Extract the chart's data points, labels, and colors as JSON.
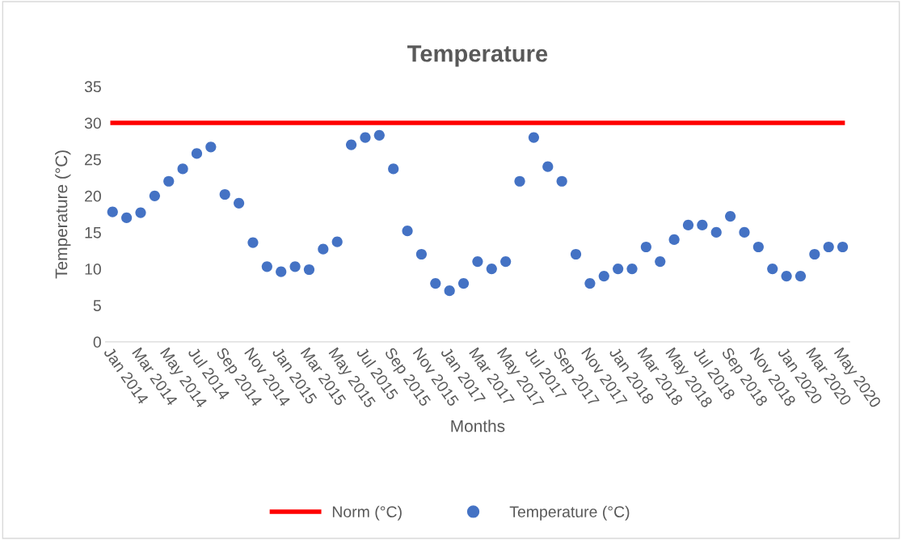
{
  "chart_data": {
    "type": "scatter",
    "title": "Temperature",
    "xlabel": "Months",
    "ylabel": "Temperature (°C)",
    "categories": [
      "Jan 2014",
      null,
      "Mar 2014",
      null,
      "May 2014",
      null,
      "Jul 2014",
      null,
      "Sep 2014",
      null,
      "Nov 2014",
      null,
      "Jan 2015",
      null,
      "Mar 2015",
      null,
      "May 2015",
      null,
      "Jul 2015",
      null,
      "Sep 2015",
      null,
      "Nov 2015",
      null,
      "Jan 2017",
      null,
      "Mar 2017",
      null,
      "May 2017",
      null,
      "Jul 2017",
      null,
      "Sep 2017",
      null,
      "Nov 2017",
      null,
      "Jan 2018",
      null,
      "Mar 2018",
      null,
      "May 2018",
      null,
      "Jul 2018",
      null,
      "Sep 2018",
      null,
      "Nov 2018",
      null,
      "Jan 2020",
      null,
      "Mar 2020",
      null,
      "May 2020"
    ],
    "series": [
      {
        "name": "Norm (°C)",
        "type": "line",
        "color": "#ff0000",
        "marker": "none",
        "line_style": "solid",
        "values": [
          30,
          30,
          30,
          30,
          30,
          30,
          30,
          30,
          30,
          30,
          30,
          30,
          30,
          30,
          30,
          30,
          30,
          30,
          30,
          30,
          30,
          30,
          30,
          30,
          30,
          30,
          30,
          30,
          30,
          30,
          30,
          30,
          30,
          30,
          30,
          30,
          30,
          30,
          30,
          30,
          30,
          30,
          30,
          30,
          30,
          30,
          30,
          30,
          30,
          30,
          30,
          30,
          30
        ]
      },
      {
        "name": "Temperature (°C)",
        "color": "#4472c4",
        "marker": "circle",
        "values": [
          17.8,
          17,
          17.7,
          20,
          22,
          23.7,
          25.8,
          26.7,
          20.2,
          19,
          13.6,
          10.3,
          9.6,
          10.3,
          9.9,
          12.7,
          13.7,
          27,
          28,
          28.3,
          23.7,
          15.2,
          12,
          8,
          7,
          8,
          11,
          10,
          11,
          22,
          28,
          24,
          22,
          12,
          8,
          9,
          10,
          10,
          13,
          11,
          14,
          16,
          16,
          15,
          17.2,
          15,
          13,
          10,
          9,
          9,
          12,
          13,
          13
        ]
      }
    ],
    "ylim": [
      0,
      35
    ],
    "yticks": [
      0,
      5,
      10,
      15,
      20,
      25,
      30,
      35
    ],
    "grid": false,
    "legend": "bottom"
  }
}
